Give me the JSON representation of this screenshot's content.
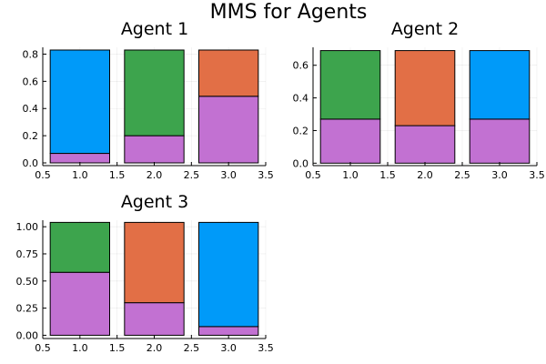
{
  "figure_title": "MMS for Agents",
  "colors": {
    "purple": "#c271d2",
    "blue": "#009af9",
    "green": "#3da44d",
    "orange": "#e26f46"
  },
  "chart_data": [
    {
      "type": "bar",
      "title": "Agent 1",
      "stacked": true,
      "xlim": [
        0.5,
        3.5
      ],
      "ylim": [
        -0.02,
        0.85
      ],
      "xticks": [
        0.5,
        1.0,
        1.5,
        2.0,
        2.5,
        3.0,
        3.5
      ],
      "xtick_labels": [
        "0.5",
        "1.0",
        "1.5",
        "2.0",
        "2.5",
        "3.0",
        "3.5"
      ],
      "yticks": [
        0.0,
        0.2,
        0.4,
        0.6,
        0.8
      ],
      "ytick_labels": [
        "0.0",
        "0.2",
        "0.4",
        "0.6",
        "0.8"
      ],
      "grid": true,
      "bars": [
        {
          "x": 1,
          "bottom": 0.07,
          "total": 0.83,
          "bottom_color": "purple",
          "top_color": "blue"
        },
        {
          "x": 2,
          "bottom": 0.2,
          "total": 0.83,
          "bottom_color": "purple",
          "top_color": "green"
        },
        {
          "x": 3,
          "bottom": 0.49,
          "total": 0.83,
          "bottom_color": "purple",
          "top_color": "orange"
        }
      ]
    },
    {
      "type": "bar",
      "title": "Agent 2",
      "stacked": true,
      "xlim": [
        0.5,
        3.5
      ],
      "ylim": [
        -0.015,
        0.71
      ],
      "xticks": [
        0.5,
        1.0,
        1.5,
        2.0,
        2.5,
        3.0,
        3.5
      ],
      "xtick_labels": [
        "0.5",
        "1.0",
        "1.5",
        "2.0",
        "2.5",
        "3.0",
        "3.5"
      ],
      "yticks": [
        0.0,
        0.2,
        0.4,
        0.6
      ],
      "ytick_labels": [
        "0.0",
        "0.2",
        "0.4",
        "0.6"
      ],
      "grid": true,
      "bars": [
        {
          "x": 1,
          "bottom": 0.27,
          "total": 0.69,
          "bottom_color": "purple",
          "top_color": "green"
        },
        {
          "x": 2,
          "bottom": 0.23,
          "total": 0.69,
          "bottom_color": "purple",
          "top_color": "orange"
        },
        {
          "x": 3,
          "bottom": 0.27,
          "total": 0.69,
          "bottom_color": "purple",
          "top_color": "blue"
        }
      ]
    },
    {
      "type": "bar",
      "title": "Agent 3",
      "stacked": true,
      "xlim": [
        0.5,
        3.5
      ],
      "ylim": [
        -0.03,
        1.06
      ],
      "xticks": [
        0.5,
        1.0,
        1.5,
        2.0,
        2.5,
        3.0,
        3.5
      ],
      "xtick_labels": [
        "0.5",
        "1.0",
        "1.5",
        "2.0",
        "2.5",
        "3.0",
        "3.5"
      ],
      "yticks": [
        0.0,
        0.25,
        0.5,
        0.75,
        1.0
      ],
      "ytick_labels": [
        "0.00",
        "0.25",
        "0.50",
        "0.75",
        "1.00"
      ],
      "grid": true,
      "bars": [
        {
          "x": 1,
          "bottom": 0.58,
          "total": 1.04,
          "bottom_color": "purple",
          "top_color": "green"
        },
        {
          "x": 2,
          "bottom": 0.3,
          "total": 1.04,
          "bottom_color": "purple",
          "top_color": "orange"
        },
        {
          "x": 3,
          "bottom": 0.08,
          "total": 1.04,
          "bottom_color": "purple",
          "top_color": "blue"
        }
      ]
    }
  ]
}
